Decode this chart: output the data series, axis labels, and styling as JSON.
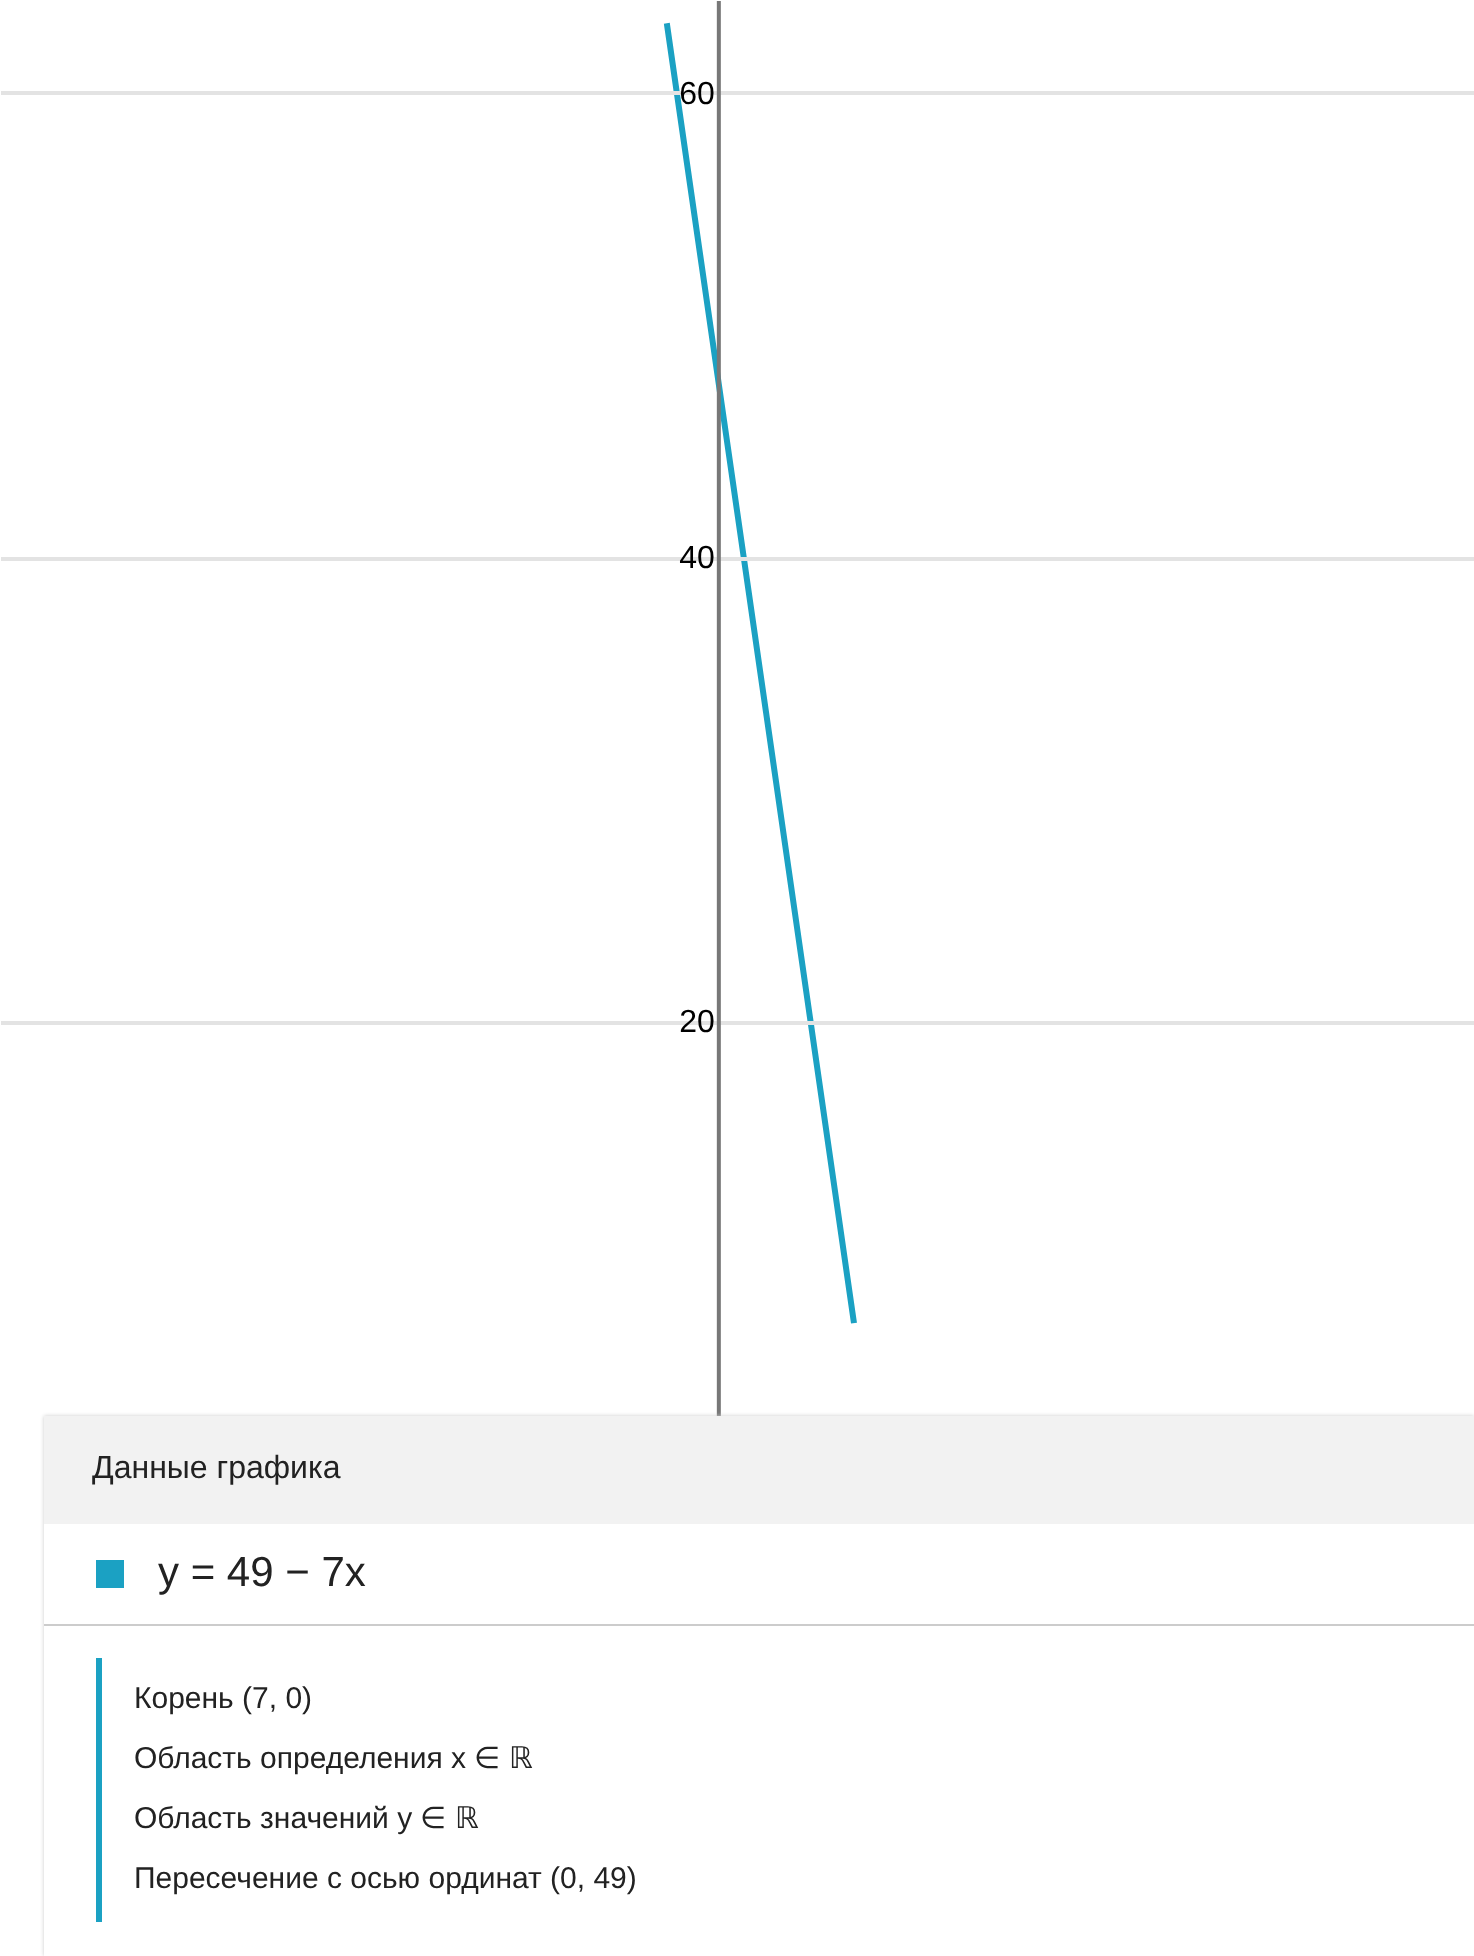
{
  "chart_data": {
    "type": "line",
    "legend_title": "Данные графика",
    "legend": "bottom",
    "tick_labels": "y",
    "grid": "y",
    "categories": [
      null,
      null,
      null,
      null,
      null,
      null,
      null,
      null,
      null,
      null,
      null,
      null,
      null,
      null,
      null,
      null,
      null,
      null,
      null,
      null,
      null,
      null,
      null,
      null,
      null,
      null,
      null,
      null,
      null,
      null,
      null,
      null,
      null,
      null,
      null,
      null,
      null,
      null,
      null,
      null,
      null,
      null,
      null,
      null,
      null,
      null,
      null,
      null,
      null,
      null,
      null,
      null,
      null,
      null,
      null,
      null,
      null,
      null,
      null,
      null,
      null,
      null,
      null
    ],
    "ylim": [
      3,
      64
    ],
    "yticks": [
      20,
      40,
      60
    ],
    "series": [
      {
        "name": "y = 49 − 7x",
        "color": "#1ba1c3",
        "values": [
          null,
          null,
          null,
          null,
          null,
          null,
          null,
          null,
          null,
          null,
          null,
          null,
          null,
          null,
          null,
          null,
          null,
          null,
          null,
          null,
          null,
          null,
          null,
          null,
          null,
          null,
          null,
          null,
          63,
          56,
          49,
          42,
          35,
          28,
          21,
          14,
          7,
          null,
          null,
          null,
          null,
          null,
          null,
          null,
          null,
          null,
          null,
          null,
          null,
          null,
          null,
          null,
          null,
          null,
          null,
          null,
          null,
          null,
          null,
          null,
          null,
          null,
          null
        ]
      }
    ],
    "annotations": [
      "Корень (7, 0)",
      "Область определения x ∈ ℝ",
      "Область значений y ∈ ℝ",
      "Пересечение с осью ординат (0, 49)"
    ]
  }
}
